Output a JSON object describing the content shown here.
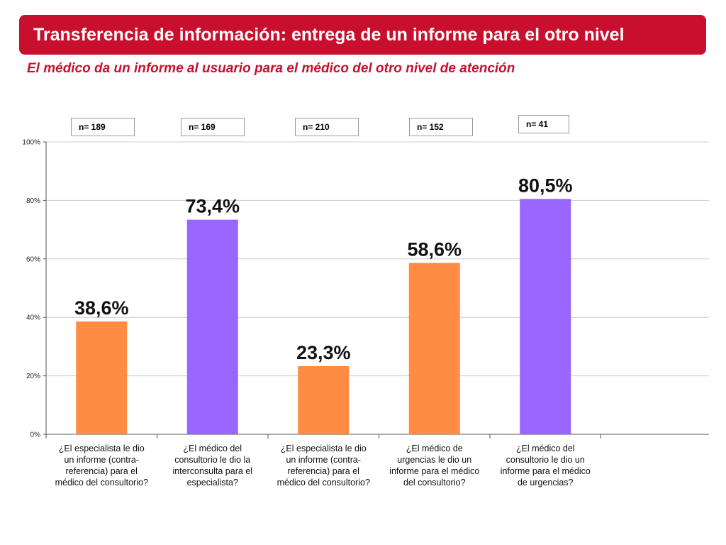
{
  "header": {
    "title": "Transferencia de información: entrega de un informe para el otro nivel",
    "subtitle": "El médico da un informe al usuario para el médico del otro nivel de atención"
  },
  "colors": {
    "title_bg": "#c8102e",
    "subtitle": "#c8102e",
    "orange": "#ff8c42",
    "purple": "#9966ff"
  },
  "chart_data": {
    "type": "bar",
    "categories": [
      "¿El especialista le dio un informe (contra-referencia) para el médico del consultorio?",
      "¿El médico del consultorio le dio la interconsulta para el especialista?",
      "¿El especialista le dio un informe (contra-referencia) para el médico del consultorio?",
      "¿El médico de urgencias le dio un informe para el médico del consultorio?",
      "¿El médico del consultorio le dio un informe para el médico de urgencias?"
    ],
    "category_lines": [
      [
        "¿El especialista le dio",
        "un informe (contra-",
        "referencia) para el",
        "médico del consultorio?"
      ],
      [
        "¿El médico del",
        "consultorio le dio la",
        "interconsulta para el",
        "especialista?"
      ],
      [
        "¿El especialista le dio",
        "un informe (contra-",
        "referencia) para el",
        "médico del consultorio?"
      ],
      [
        "¿El médico de",
        "urgencias le dio un",
        "informe para el médico",
        "del consultorio?"
      ],
      [
        "¿El médico del",
        "consultorio le dio un",
        "informe para el médico",
        "de urgencias?"
      ]
    ],
    "values": [
      38.6,
      73.4,
      23.3,
      58.6,
      80.5
    ],
    "value_labels": [
      "38,6%",
      "73,4%",
      "23,3%",
      "58,6%",
      "80,5%"
    ],
    "bar_colors": [
      "#ff8c42",
      "#9966ff",
      "#ff8c42",
      "#ff8c42",
      "#9966ff"
    ],
    "n_labels": [
      "n= 189",
      "n= 169",
      "n= 210",
      "n= 152",
      "n= 41"
    ],
    "yticks": [
      "0%",
      "20%",
      "40%",
      "60%",
      "80%",
      "100%"
    ],
    "ylim": [
      0,
      100
    ],
    "grid": true
  }
}
